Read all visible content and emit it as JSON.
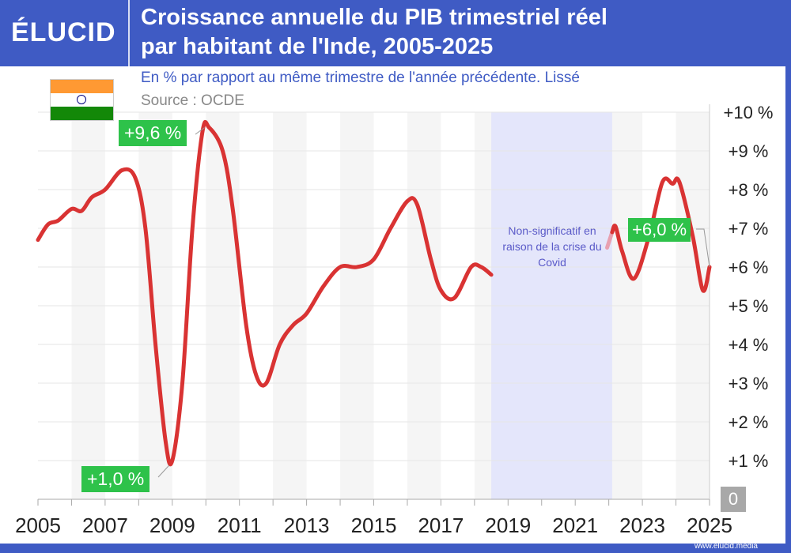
{
  "header": {
    "logo": "ÉLUCID",
    "title_line1": "Croissance annuelle du PIB trimestriel réel",
    "title_line2": "par habitant de l'Inde, 2005-2025",
    "subtitle": "En % par rapport au même trimestre de l'année précédente. Lissé",
    "source": "Source : OCDE",
    "url": "www.elucid.media"
  },
  "colors": {
    "brand": "#3f5bc4",
    "line": "#d93333",
    "label": "#2ec24a",
    "covid_band": "#e4e6fb"
  },
  "annotations": {
    "max": "+9,6 %",
    "min": "+1,0 %",
    "last": "+6,0 %",
    "covid": "Non-significatif en raison de la crise du Covid",
    "zero": "0"
  },
  "chart_data": {
    "type": "line",
    "title": "Croissance annuelle du PIB trimestriel réel par habitant de l'Inde, 2005-2025",
    "ylabel": "%",
    "xlim": [
      2005,
      2025
    ],
    "ylim": [
      0,
      10
    ],
    "x_ticks": [
      "2005",
      "2007",
      "2009",
      "2011",
      "2013",
      "2015",
      "2017",
      "2019",
      "2021",
      "2023",
      "2025"
    ],
    "y_ticks": [
      "+1 %",
      "+2 %",
      "+3 %",
      "+4 %",
      "+5 %",
      "+6 %",
      "+7 %",
      "+8 %",
      "+9 %",
      "+10 %"
    ],
    "covid_excluded_range": [
      2018.5,
      2022.1
    ],
    "series": [
      {
        "name": "pre-covid",
        "points": [
          [
            2005.0,
            6.7
          ],
          [
            2005.3,
            7.1
          ],
          [
            2005.6,
            7.2
          ],
          [
            2006.0,
            7.5
          ],
          [
            2006.3,
            7.45
          ],
          [
            2006.6,
            7.8
          ],
          [
            2007.0,
            8.0
          ],
          [
            2007.5,
            8.5
          ],
          [
            2007.9,
            8.3
          ],
          [
            2008.2,
            7.0
          ],
          [
            2008.5,
            4.0
          ],
          [
            2008.8,
            1.5
          ],
          [
            2009.0,
            1.0
          ],
          [
            2009.3,
            3.0
          ],
          [
            2009.6,
            7.0
          ],
          [
            2009.9,
            9.5
          ],
          [
            2010.1,
            9.6
          ],
          [
            2010.5,
            9.0
          ],
          [
            2010.8,
            7.5
          ],
          [
            2011.2,
            4.5
          ],
          [
            2011.5,
            3.2
          ],
          [
            2011.8,
            3.0
          ],
          [
            2012.2,
            4.0
          ],
          [
            2012.6,
            4.5
          ],
          [
            2013.0,
            4.8
          ],
          [
            2013.5,
            5.5
          ],
          [
            2014.0,
            6.0
          ],
          [
            2014.5,
            6.0
          ],
          [
            2015.0,
            6.2
          ],
          [
            2015.5,
            7.0
          ],
          [
            2016.0,
            7.7
          ],
          [
            2016.3,
            7.6
          ],
          [
            2016.7,
            6.2
          ],
          [
            2017.0,
            5.4
          ],
          [
            2017.4,
            5.2
          ],
          [
            2017.9,
            6.0
          ],
          [
            2018.2,
            6.0
          ],
          [
            2018.5,
            5.8
          ]
        ]
      },
      {
        "name": "post-covid-faded",
        "points": [
          [
            2021.95,
            6.5
          ],
          [
            2022.1,
            6.9
          ]
        ]
      },
      {
        "name": "post-covid",
        "points": [
          [
            2022.1,
            6.9
          ],
          [
            2022.2,
            7.05
          ],
          [
            2022.4,
            6.4
          ],
          [
            2022.75,
            5.7
          ],
          [
            2023.2,
            6.8
          ],
          [
            2023.6,
            8.2
          ],
          [
            2023.9,
            8.15
          ],
          [
            2024.1,
            8.2
          ],
          [
            2024.5,
            6.8
          ],
          [
            2024.8,
            5.4
          ],
          [
            2025.0,
            6.0
          ]
        ]
      }
    ]
  }
}
